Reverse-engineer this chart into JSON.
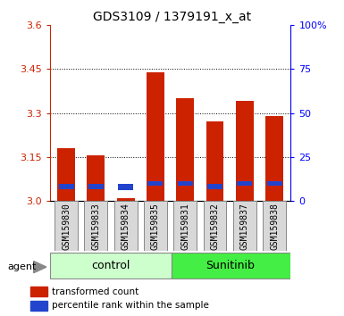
{
  "title": "GDS3109 / 1379191_x_at",
  "samples": [
    "GSM159830",
    "GSM159833",
    "GSM159834",
    "GSM159835",
    "GSM159831",
    "GSM159832",
    "GSM159837",
    "GSM159838"
  ],
  "red_values": [
    3.18,
    3.155,
    3.01,
    3.44,
    3.35,
    3.27,
    3.34,
    3.29
  ],
  "blue_heights": [
    0.018,
    0.018,
    0.022,
    0.018,
    0.018,
    0.018,
    0.018,
    0.018
  ],
  "blue_bottoms": [
    3.04,
    3.04,
    3.035,
    3.05,
    3.05,
    3.04,
    3.05,
    3.05
  ],
  "red_color": "#cc2200",
  "blue_color": "#2244cc",
  "ymin": 3.0,
  "ymax": 3.6,
  "y_ticks_left": [
    3.0,
    3.15,
    3.3,
    3.45,
    3.6
  ],
  "y_ticks_right": [
    0,
    25,
    50,
    75,
    100
  ],
  "grid_lines": [
    3.15,
    3.3,
    3.45
  ],
  "control_color": "#ccffcc",
  "sunitinib_color": "#44ee44",
  "bar_width": 0.6,
  "tick_fontsize": 8,
  "label_fontsize": 7,
  "group_fontsize": 9,
  "title_fontsize": 10
}
